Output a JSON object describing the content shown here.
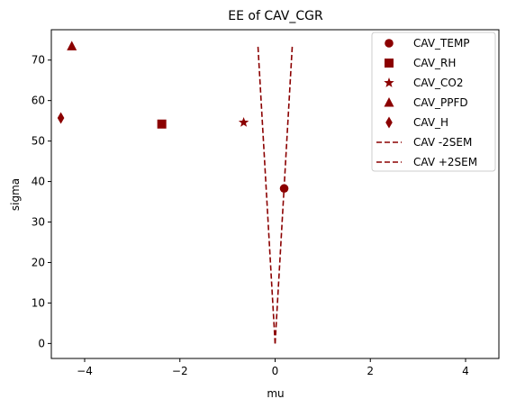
{
  "chart_data": {
    "type": "scatter",
    "title": "EE of CAV_CGR",
    "xlabel": "mu",
    "ylabel": "sigma",
    "xlim": [
      -4.7,
      4.7
    ],
    "ylim": [
      -3.7,
      77.5
    ],
    "x_ticks": [
      -4,
      -2,
      0,
      2,
      4
    ],
    "x_tick_labels": [
      "−4",
      "−2",
      "0",
      "2",
      "4"
    ],
    "y_ticks": [
      0,
      10,
      20,
      30,
      40,
      50,
      60,
      70
    ],
    "y_tick_labels": [
      "0",
      "10",
      "20",
      "30",
      "40",
      "50",
      "60",
      "70"
    ],
    "grid": false,
    "legend_position": "top-right",
    "series": [
      {
        "name": "CAV_TEMP",
        "marker": "circle",
        "color": "#8b0000",
        "points": [
          [
            0.19,
            38.3
          ]
        ]
      },
      {
        "name": "CAV_RH",
        "marker": "square",
        "color": "#8b0000",
        "points": [
          [
            -2.38,
            54.2
          ]
        ]
      },
      {
        "name": "CAV_CO2",
        "marker": "star",
        "color": "#8b0000",
        "points": [
          [
            -0.66,
            54.6
          ]
        ]
      },
      {
        "name": "CAV_PPFD",
        "marker": "triangle",
        "color": "#8b0000",
        "points": [
          [
            -4.27,
            73.4
          ]
        ]
      },
      {
        "name": "CAV_H",
        "marker": "diamond",
        "color": "#8b0000",
        "points": [
          [
            -4.5,
            55.7
          ]
        ]
      }
    ],
    "lines": [
      {
        "name": "CAV -2SEM",
        "style": "dashed",
        "color": "#8b0000",
        "points": [
          [
            0,
            0
          ],
          [
            -0.36,
            73.4
          ]
        ]
      },
      {
        "name": "CAV +2SEM",
        "style": "dashed",
        "color": "#8b0000",
        "points": [
          [
            0,
            0
          ],
          [
            0.36,
            73.4
          ]
        ]
      }
    ]
  }
}
